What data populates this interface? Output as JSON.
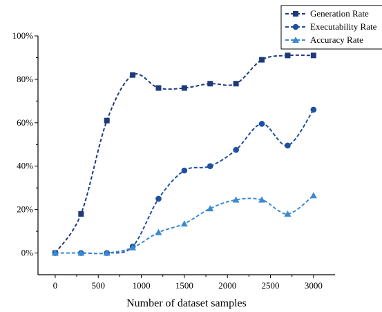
{
  "chart_data": {
    "type": "line",
    "title": "",
    "xlabel": "Number of dataset samples",
    "ylabel": "",
    "xlim": [
      -200,
      3250
    ],
    "ylim": [
      -10,
      100
    ],
    "x_ticks": [
      0,
      500,
      1000,
      1500,
      2000,
      2500,
      3000
    ],
    "y_ticks": [
      0,
      20,
      40,
      60,
      80,
      100
    ],
    "x_tick_labels": [
      "0",
      "500",
      "1000",
      "1500",
      "2000",
      "2500",
      "3000"
    ],
    "y_tick_labels": [
      "0%",
      "20%",
      "40%",
      "60%",
      "80%",
      "100%"
    ],
    "x": [
      0,
      300,
      600,
      900,
      1200,
      1500,
      1800,
      2100,
      2400,
      2700,
      3000
    ],
    "legend_position": "top-right",
    "grid": false,
    "series": [
      {
        "name": "Generation Rate",
        "marker": "square",
        "color": "#1f3a7a",
        "values": [
          0,
          18,
          61,
          82,
          76,
          76,
          78,
          78,
          89,
          91,
          91
        ]
      },
      {
        "name": "Executability Rate",
        "marker": "circle",
        "color": "#1e4fa0",
        "values": [
          0,
          0,
          0,
          3,
          25,
          38,
          40,
          47.5,
          59.5,
          49.5,
          66
        ]
      },
      {
        "name": "Accuracy Rate",
        "marker": "triangle",
        "color": "#3a8ad0",
        "values": [
          0,
          0,
          0,
          2.5,
          9.5,
          13.5,
          20.5,
          24.5,
          24.5,
          18,
          26.5
        ]
      }
    ]
  }
}
